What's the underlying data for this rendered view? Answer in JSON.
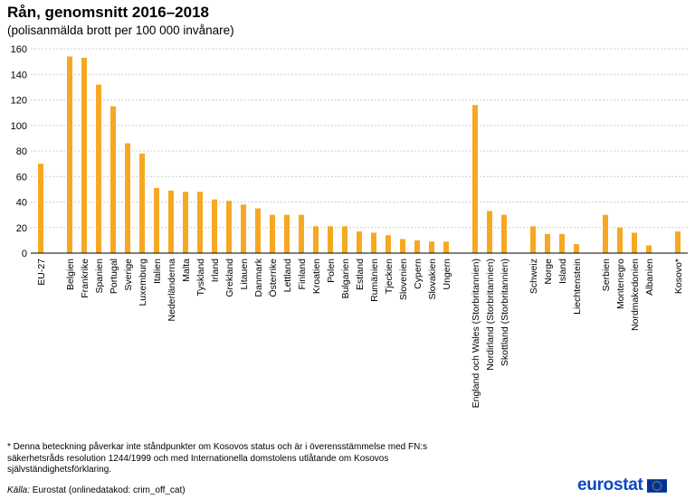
{
  "chart_data": {
    "type": "bar",
    "title": "Rån, genomsnitt 2016–2018",
    "subtitle": "(polisanmälda  brott per 100 000 invånare)",
    "ylim": [
      0,
      160
    ],
    "yticks": [
      0,
      20,
      40,
      60,
      80,
      100,
      120,
      140,
      160
    ],
    "grid": true,
    "bar_color": "#f7a823",
    "groups": [
      {
        "categories": [
          "EU-27"
        ],
        "values": [
          70
        ]
      },
      {
        "categories": [
          "Belgien",
          "Frankrike",
          "Spanien",
          "Portugal",
          "Sverige",
          "Luxemburg",
          "Italien",
          "Nederländerna",
          "Malta",
          "Tyskland",
          "Irland",
          "Grekland",
          "Litauen",
          "Danmark",
          "Österrike",
          "Lettland",
          "Finland",
          "Kroatien",
          "Polen",
          "Bulgarien",
          "Estland",
          "Rumänien",
          "Tjeckien",
          "Slovenien",
          "Cypern",
          "Slovakien",
          "Ungern"
        ],
        "values": [
          154,
          153,
          132,
          115,
          86,
          78,
          51,
          49,
          48,
          48,
          42,
          41,
          38,
          35,
          30,
          30,
          30,
          21,
          21,
          21,
          17,
          16,
          14,
          11,
          10,
          9,
          9
        ]
      },
      {
        "categories": [
          "England och Wales (Storbritannien)",
          "Nordirland (Storbritannien)",
          "Skottland (Storbritannien)"
        ],
        "values": [
          116,
          33,
          30
        ]
      },
      {
        "categories": [
          "Schweiz",
          "Norge",
          "Island",
          "Liechtenstein"
        ],
        "values": [
          21,
          15,
          15,
          7
        ]
      },
      {
        "categories": [
          "Serbien",
          "Montenegro",
          "Nordmakedonien",
          "Albanien"
        ],
        "values": [
          30,
          20,
          16,
          6
        ]
      },
      {
        "categories": [
          "Kosovo*"
        ],
        "values": [
          17
        ]
      }
    ]
  },
  "footnote": "* Denna beteckning påverkar inte ståndpunkter  om Kosovos status och är i överensstämmelse med FN:s\nsäkerhetsråds resolution 1244/1999 och med Internationella  domstolens utlåtande om Kosovos\nsjälvständighetsförklaring.",
  "source": {
    "label": "Källa:",
    "text": " Eurostat  (onlinedatakod:  crim_off_cat)"
  },
  "logo": {
    "text": "eurostat",
    "flag_blue": "#003399",
    "flag_yellow": "#ffcc00"
  }
}
